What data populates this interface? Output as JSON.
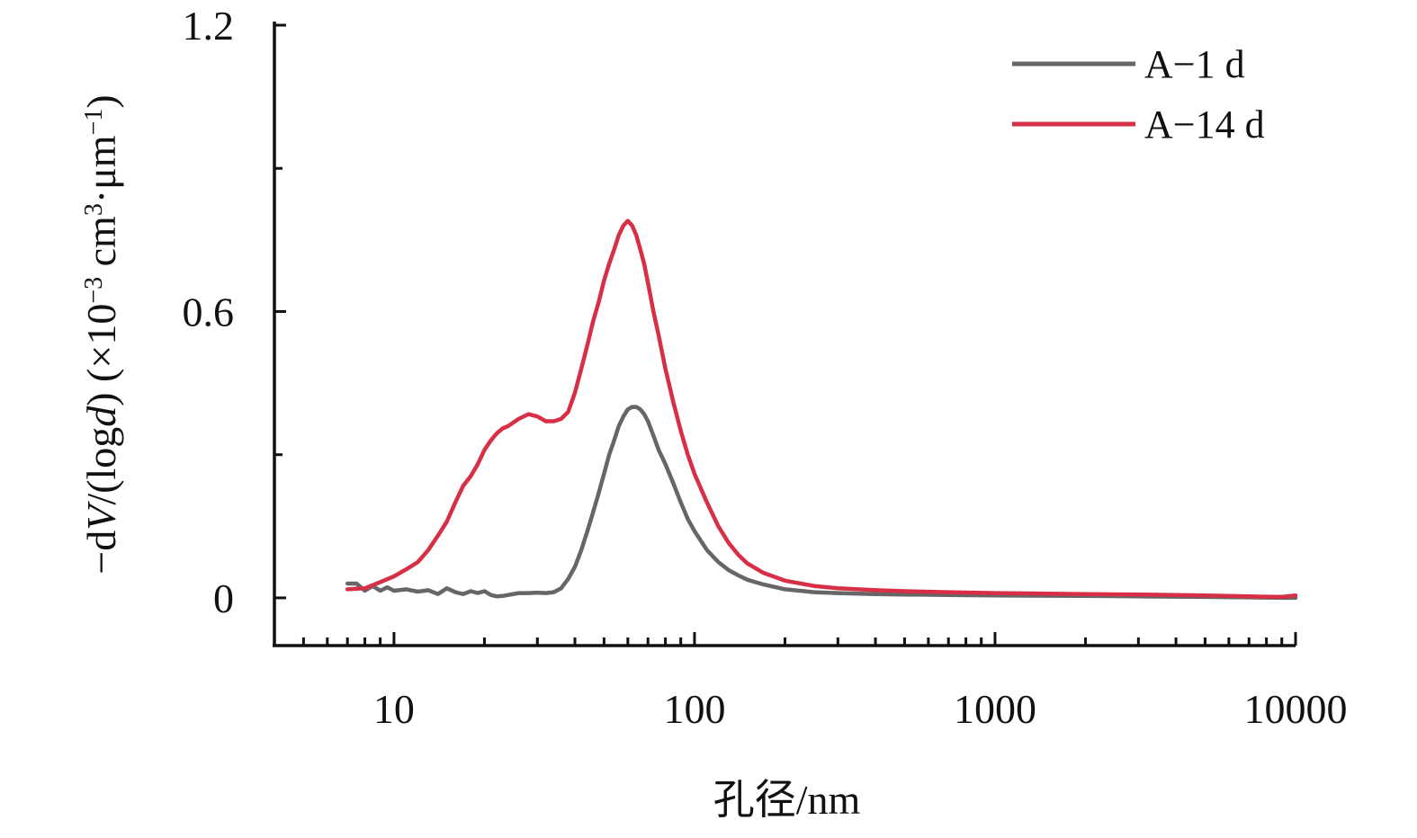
{
  "chart_data": {
    "type": "line",
    "xlabel": "孔径/nm",
    "ylabel": "−dV/(logd) (×10⁻³ cm³·μm⁻¹)",
    "ylabel_parts": [
      "−d",
      "V",
      "/(log",
      "d",
      ") (×10",
      "−3",
      " cm",
      "3",
      "·μm",
      "−1",
      ")"
    ],
    "xscale": "log",
    "xlim": [
      4,
      10000
    ],
    "ylim": [
      -0.1,
      1.2
    ],
    "x_ticks": [
      10,
      100,
      1000,
      10000
    ],
    "x_tick_labels": [
      "10",
      "100",
      "1000",
      "10000"
    ],
    "y_ticks": [
      0,
      0.6,
      1.2
    ],
    "y_tick_labels": [
      "0",
      "0.6",
      "1.2"
    ],
    "y_minor_ticks": [
      0.3,
      0.9
    ],
    "grid": false,
    "legend": "top-right",
    "series": [
      {
        "name": "A−1 d",
        "color": "#666666",
        "x": [
          7,
          7.5,
          8,
          8.5,
          9,
          9.5,
          10,
          11,
          12,
          13,
          14,
          15,
          16,
          17,
          18,
          19,
          20,
          21,
          22,
          23,
          24,
          26,
          28,
          30,
          32,
          34,
          36,
          38,
          40,
          42,
          44,
          46,
          48,
          50,
          52,
          54,
          56,
          58,
          60,
          62,
          64,
          66,
          68,
          70,
          73,
          76,
          80,
          85,
          90,
          95,
          100,
          110,
          120,
          130,
          140,
          150,
          170,
          200,
          250,
          300,
          400,
          500,
          700,
          1000,
          2000,
          3000,
          5000,
          7000,
          9000,
          10000
        ],
        "y": [
          0.03,
          0.03,
          0.015,
          0.025,
          0.015,
          0.022,
          0.015,
          0.018,
          0.013,
          0.016,
          0.008,
          0.02,
          0.012,
          0.008,
          0.014,
          0.01,
          0.014,
          0.006,
          0.003,
          0.004,
          0.006,
          0.01,
          0.01,
          0.011,
          0.01,
          0.012,
          0.02,
          0.04,
          0.065,
          0.1,
          0.14,
          0.18,
          0.22,
          0.26,
          0.3,
          0.33,
          0.36,
          0.38,
          0.395,
          0.4,
          0.4,
          0.395,
          0.385,
          0.37,
          0.34,
          0.31,
          0.28,
          0.24,
          0.2,
          0.165,
          0.14,
          0.1,
          0.075,
          0.058,
          0.047,
          0.038,
          0.028,
          0.018,
          0.012,
          0.01,
          0.008,
          0.007,
          0.006,
          0.005,
          0.004,
          0.003,
          0.002,
          0.001,
          0.0,
          0.0
        ]
      },
      {
        "name": "A−14 d",
        "color": "#d62f46",
        "x": [
          7,
          8,
          9,
          10,
          11,
          12,
          13,
          14,
          15,
          16,
          17,
          18,
          19,
          20,
          21,
          22,
          23,
          24,
          26,
          28,
          30,
          32,
          34,
          36,
          38,
          40,
          42,
          44,
          46,
          48,
          50,
          52,
          54,
          56,
          58,
          60,
          62,
          64,
          66,
          68,
          70,
          73,
          76,
          80,
          85,
          90,
          95,
          100,
          110,
          120,
          130,
          140,
          150,
          170,
          200,
          250,
          300,
          400,
          500,
          700,
          1000,
          2000,
          3000,
          5000,
          7000,
          9000,
          10000
        ],
        "y": [
          0.018,
          0.02,
          0.033,
          0.045,
          0.06,
          0.075,
          0.1,
          0.13,
          0.16,
          0.2,
          0.235,
          0.255,
          0.28,
          0.31,
          0.33,
          0.345,
          0.355,
          0.36,
          0.375,
          0.385,
          0.38,
          0.37,
          0.37,
          0.375,
          0.39,
          0.43,
          0.48,
          0.53,
          0.58,
          0.62,
          0.665,
          0.7,
          0.73,
          0.76,
          0.78,
          0.79,
          0.78,
          0.76,
          0.73,
          0.7,
          0.66,
          0.6,
          0.55,
          0.48,
          0.41,
          0.35,
          0.3,
          0.26,
          0.2,
          0.15,
          0.115,
          0.09,
          0.072,
          0.052,
          0.036,
          0.025,
          0.02,
          0.016,
          0.014,
          0.012,
          0.01,
          0.008,
          0.007,
          0.005,
          0.003,
          0.002,
          0.005
        ]
      }
    ]
  }
}
